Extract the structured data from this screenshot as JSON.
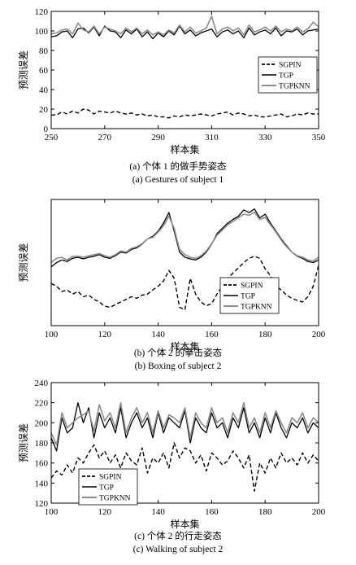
{
  "chart_data": [
    {
      "type": "line",
      "ylabel": "预测误差",
      "xlabel": "样本集",
      "caption_cn": "(a) 个体 1 的做手势姿态",
      "caption_en": "(a) Gestures of subject 1",
      "xlim": [
        250,
        350
      ],
      "ylim": [
        0,
        120
      ],
      "xticks": [
        "250",
        "270",
        "290",
        "310",
        "330",
        "350"
      ],
      "yticks": [
        "0",
        "20",
        "40",
        "60",
        "80",
        "100",
        "120"
      ],
      "legend_position": "right",
      "grid": false,
      "x": [
        250,
        252,
        254,
        256,
        258,
        260,
        262,
        264,
        266,
        268,
        270,
        272,
        274,
        276,
        278,
        280,
        282,
        284,
        286,
        288,
        290,
        292,
        294,
        296,
        298,
        300,
        302,
        304,
        306,
        308,
        310,
        312,
        314,
        316,
        318,
        320,
        322,
        324,
        326,
        328,
        330,
        332,
        334,
        336,
        338,
        340,
        342,
        344,
        346,
        348,
        350
      ],
      "series": [
        {
          "name": "SGPIN",
          "values": [
            14,
            14,
            17,
            15,
            18,
            16,
            20,
            19,
            15,
            18,
            17,
            16,
            18,
            16,
            15,
            16,
            14,
            15,
            13,
            14,
            12,
            12,
            11,
            13,
            12,
            14,
            13,
            14,
            15,
            14,
            13,
            15,
            16,
            17,
            14,
            16,
            15,
            13,
            14,
            12,
            12,
            13,
            14,
            15,
            12,
            13,
            15,
            14,
            16,
            15,
            15
          ]
        },
        {
          "name": "TGP",
          "values": [
            94,
            95,
            99,
            100,
            93,
            102,
            103,
            98,
            104,
            95,
            105,
            100,
            99,
            93,
            101,
            97,
            102,
            94,
            99,
            92,
            98,
            94,
            100,
            96,
            105,
            97,
            101,
            95,
            98,
            100,
            102,
            94,
            99,
            101,
            97,
            100,
            93,
            103,
            96,
            99,
            101,
            97,
            103,
            95,
            100,
            99,
            102,
            96,
            100,
            101,
            102
          ]
        },
        {
          "name": "TGPKNN",
          "values": [
            97,
            98,
            101,
            102,
            97,
            108,
            101,
            99,
            105,
            97,
            104,
            102,
            100,
            97,
            103,
            99,
            103,
            97,
            101,
            96,
            99,
            96,
            101,
            98,
            106,
            99,
            104,
            98,
            100,
            103,
            115,
            97,
            102,
            104,
            100,
            103,
            96,
            106,
            99,
            101,
            104,
            100,
            105,
            99,
            102,
            100,
            104,
            99,
            102,
            109,
            104
          ]
        }
      ]
    },
    {
      "type": "line",
      "ylabel": "预测误差",
      "xlabel": "样本集",
      "caption_cn": "(b) 个体 2 的拳击姿态",
      "caption_en": "(b) Boxing of subject 2",
      "xlim": [
        100,
        200
      ],
      "ylim": [
        20,
        260
      ],
      "xticks": [
        "100",
        "120",
        "140",
        "160",
        "180",
        "200"
      ],
      "yticks": [],
      "legend_position": "bottom-right",
      "grid": false,
      "x": [
        100,
        102,
        104,
        106,
        108,
        110,
        112,
        114,
        116,
        118,
        120,
        122,
        124,
        126,
        128,
        130,
        132,
        134,
        136,
        138,
        140,
        142,
        144,
        146,
        148,
        150,
        152,
        154,
        156,
        158,
        160,
        162,
        164,
        166,
        168,
        170,
        172,
        174,
        176,
        178,
        180,
        182,
        184,
        186,
        188,
        190,
        192,
        194,
        196,
        198,
        200
      ],
      "series": [
        {
          "name": "SGPIN",
          "values": [
            100,
            95,
            85,
            88,
            80,
            85,
            75,
            78,
            70,
            65,
            57,
            55,
            60,
            65,
            70,
            75,
            72,
            78,
            80,
            88,
            95,
            105,
            125,
            110,
            55,
            50,
            110,
            80,
            65,
            58,
            62,
            80,
            95,
            110,
            120,
            130,
            140,
            148,
            152,
            148,
            128,
            115,
            95,
            88,
            78,
            72,
            68,
            65,
            75,
            95,
            135
          ]
        },
        {
          "name": "TGP",
          "values": [
            132,
            140,
            145,
            142,
            148,
            150,
            147,
            150,
            152,
            155,
            150,
            148,
            153,
            160,
            158,
            165,
            168,
            175,
            185,
            190,
            200,
            215,
            235,
            200,
            160,
            150,
            147,
            145,
            150,
            160,
            175,
            195,
            205,
            215,
            222,
            228,
            240,
            235,
            242,
            225,
            232,
            215,
            200,
            185,
            172,
            160,
            152,
            148,
            142,
            140,
            145
          ]
        },
        {
          "name": "TGPKNN",
          "values": [
            140,
            148,
            150,
            145,
            152,
            152,
            150,
            153,
            155,
            157,
            153,
            150,
            155,
            162,
            160,
            167,
            170,
            176,
            185,
            188,
            198,
            210,
            228,
            205,
            165,
            155,
            150,
            148,
            153,
            162,
            176,
            192,
            202,
            212,
            218,
            225,
            232,
            230,
            236,
            222,
            226,
            212,
            198,
            183,
            170,
            160,
            153,
            150,
            145,
            143,
            150
          ]
        }
      ]
    },
    {
      "type": "line",
      "ylabel": "预测误差",
      "xlabel": "样本集",
      "caption_cn": "(c) 个体 2 的行走姿态",
      "caption_en": "(c) Walking of subject 2",
      "xlim": [
        100,
        200
      ],
      "ylim": [
        120,
        240
      ],
      "xticks": [
        "100",
        "120",
        "140",
        "160",
        "180",
        "200"
      ],
      "yticks": [
        "120",
        "140",
        "160",
        "180",
        "200",
        "220",
        "240"
      ],
      "legend_position": "bottom-left",
      "grid": false,
      "x": [
        100,
        102,
        104,
        106,
        108,
        110,
        112,
        114,
        116,
        118,
        120,
        122,
        124,
        126,
        128,
        130,
        132,
        134,
        136,
        138,
        140,
        142,
        144,
        146,
        148,
        150,
        152,
        154,
        156,
        158,
        160,
        162,
        164,
        166,
        168,
        170,
        172,
        174,
        176,
        178,
        180,
        182,
        184,
        186,
        188,
        190,
        192,
        194,
        196,
        198,
        200
      ],
      "series": [
        {
          "name": "SGPIN",
          "values": [
            145,
            152,
            148,
            158,
            150,
            165,
            160,
            170,
            178,
            165,
            172,
            160,
            168,
            155,
            170,
            162,
            158,
            175,
            150,
            165,
            160,
            170,
            155,
            180,
            165,
            175,
            172,
            160,
            168,
            152,
            170,
            165,
            158,
            162,
            172,
            165,
            155,
            168,
            132,
            160,
            150,
            165,
            155,
            170,
            160,
            165,
            158,
            170,
            160,
            168,
            162
          ]
        },
        {
          "name": "TGP",
          "values": [
            185,
            172,
            205,
            190,
            195,
            220,
            200,
            215,
            185,
            210,
            195,
            205,
            190,
            215,
            185,
            200,
            210,
            195,
            205,
            185,
            210,
            190,
            205,
            200,
            195,
            212,
            180,
            205,
            195,
            190,
            210,
            195,
            200,
            185,
            205,
            195,
            215,
            190,
            200,
            185,
            205,
            190,
            210,
            195,
            185,
            200,
            195,
            205,
            190,
            200,
            195
          ]
        },
        {
          "name": "TGPKNN",
          "values": [
            190,
            178,
            210,
            195,
            200,
            205,
            208,
            212,
            192,
            218,
            202,
            210,
            195,
            220,
            190,
            205,
            215,
            200,
            210,
            190,
            212,
            195,
            208,
            205,
            200,
            215,
            185,
            210,
            200,
            195,
            215,
            200,
            205,
            190,
            210,
            200,
            220,
            195,
            205,
            190,
            210,
            195,
            212,
            200,
            190,
            205,
            200,
            210,
            195,
            205,
            200
          ]
        }
      ]
    }
  ]
}
